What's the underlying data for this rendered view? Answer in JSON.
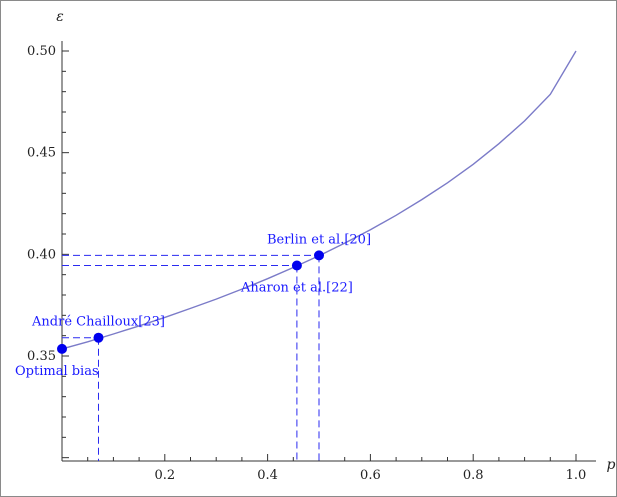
{
  "chart_data": {
    "type": "line",
    "title": "",
    "xlabel": "p",
    "ylabel": "ε",
    "xlim": [
      0,
      1.0
    ],
    "ylim": [
      0.3,
      0.5
    ],
    "xticks": [
      {
        "value": 0.2,
        "label": "0.2"
      },
      {
        "value": 0.4,
        "label": "0.4"
      },
      {
        "value": 0.6,
        "label": "0.6"
      },
      {
        "value": 0.8,
        "label": "0.8"
      },
      {
        "value": 1.0,
        "label": "1.0"
      }
    ],
    "yticks": [
      {
        "value": 0.35,
        "label": "0.35"
      },
      {
        "value": 0.4,
        "label": "0.40"
      },
      {
        "value": 0.45,
        "label": "0.45"
      },
      {
        "value": 0.5,
        "label": "0.50"
      }
    ],
    "series": [
      {
        "color": "#7b7bc8",
        "x": [
          0.0,
          0.05,
          0.1,
          0.15,
          0.2,
          0.25,
          0.3,
          0.35,
          0.4,
          0.45,
          0.5,
          0.55,
          0.6,
          0.65,
          0.7,
          0.75,
          0.8,
          0.85,
          0.9,
          0.95,
          1.0
        ],
        "y": [
          0.3535,
          0.357,
          0.3608,
          0.3648,
          0.369,
          0.3734,
          0.378,
          0.3829,
          0.388,
          0.3935,
          0.3993,
          0.4055,
          0.4121,
          0.4192,
          0.4269,
          0.4352,
          0.4443,
          0.4544,
          0.4656,
          0.4787,
          0.5
        ]
      }
    ],
    "points": [
      {
        "x": 0.0,
        "y": 0.3535,
        "label": "Optimal bias",
        "label_pos": "below",
        "guides": false
      },
      {
        "x": 0.071,
        "y": 0.359,
        "label": "André Chailloux[23]",
        "label_pos": "above",
        "guides": true
      },
      {
        "x": 0.457,
        "y": 0.3945,
        "label": "Aharon et al.[22]",
        "label_pos": "below",
        "guides": true
      },
      {
        "x": 0.5,
        "y": 0.3995,
        "label": "Berlin et al.[20]",
        "label_pos": "above",
        "guides": true
      }
    ],
    "point_color": "#0000ee",
    "guide_color": "#2a2af0",
    "grid": false,
    "legend": "none"
  }
}
